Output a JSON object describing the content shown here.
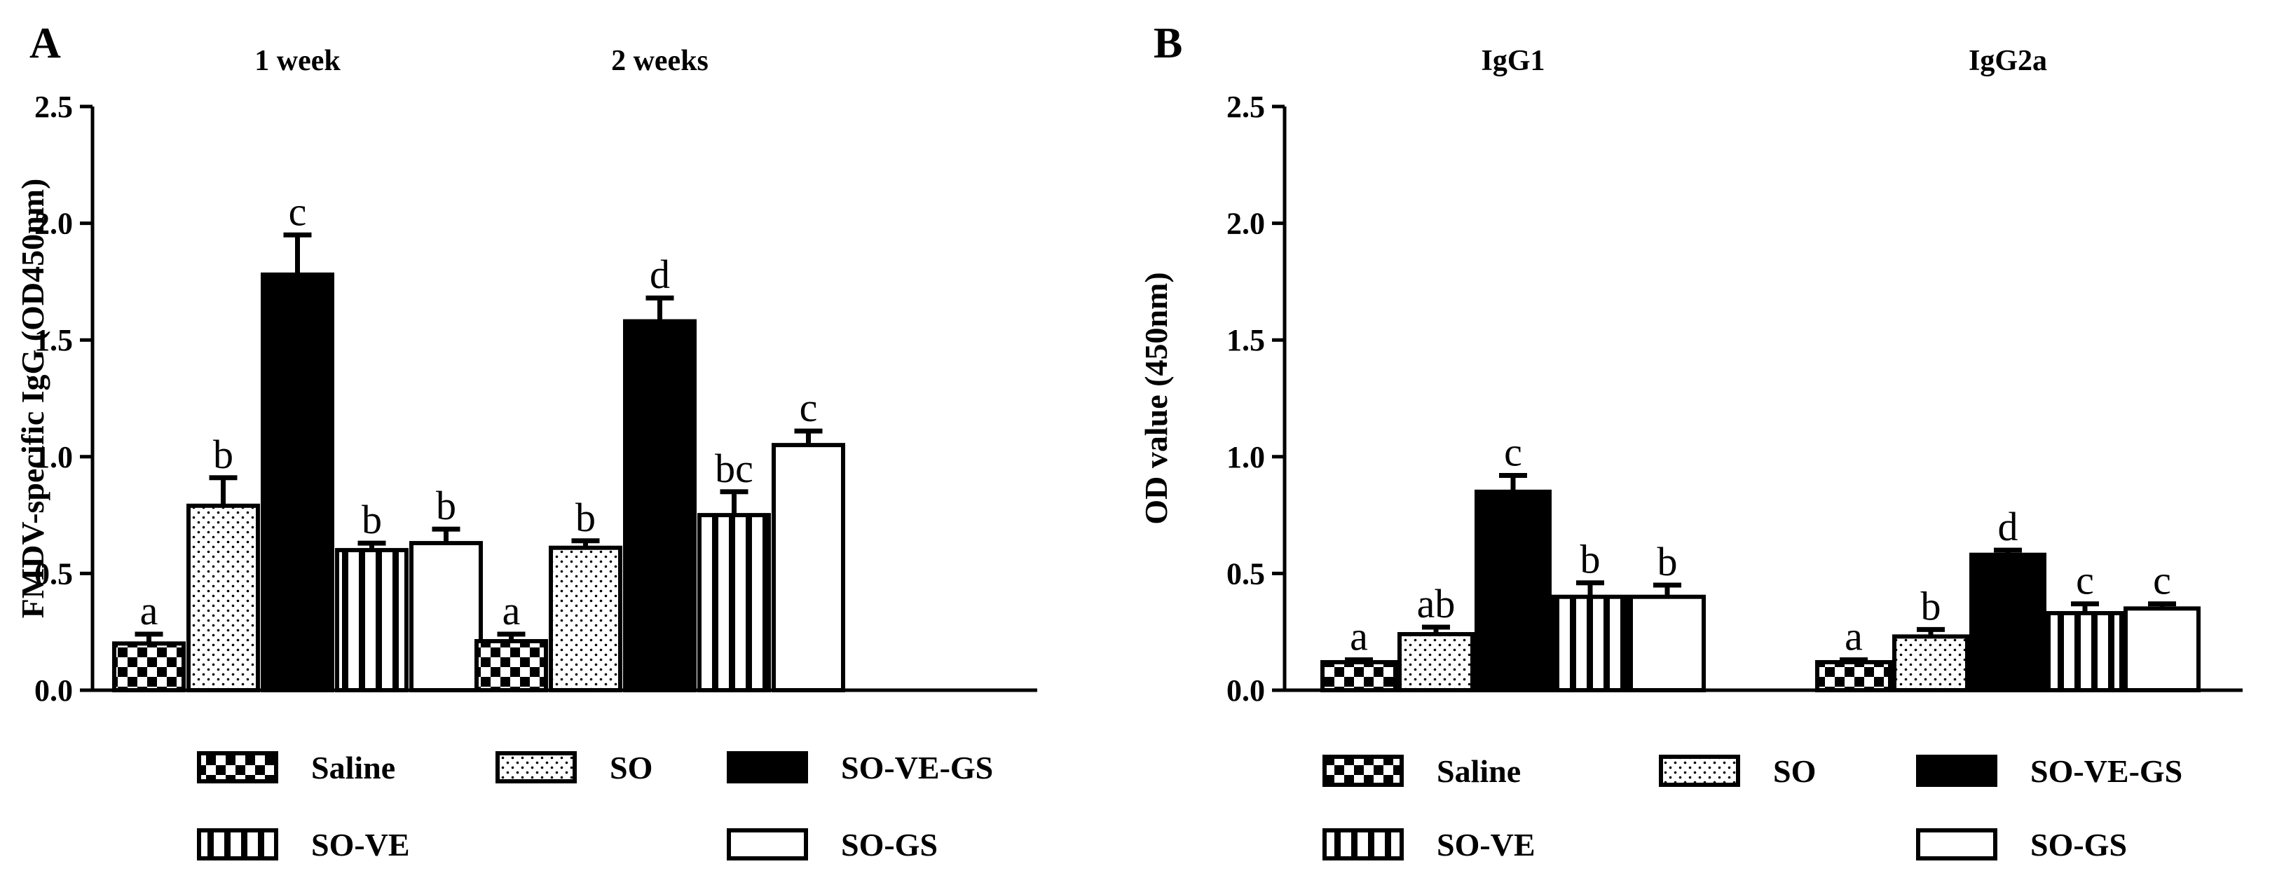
{
  "figure": {
    "panels": [
      "A",
      "B"
    ]
  },
  "legend_items": [
    "Saline",
    "SO",
    "SO-VE-GS",
    "SO-VE",
    "SO-GS"
  ],
  "colors": {
    "ink": "#000000",
    "background": "#ffffff"
  },
  "chart_data": [
    {
      "type": "bar",
      "panel": "A",
      "title": "",
      "xlabel": "",
      "ylabel": "FMDV-specific IgG (OD450nm)",
      "ylim": [
        0,
        2.5
      ],
      "yticks": [
        "0.0",
        "0.5",
        "1.0",
        "1.5",
        "2.0",
        "2.5"
      ],
      "categories": [
        "1 week",
        "2 weeks"
      ],
      "series": [
        {
          "name": "Saline",
          "pattern": "checker",
          "values": [
            0.2,
            0.21
          ],
          "errors": [
            0.04,
            0.03
          ],
          "labels": [
            "a",
            "a"
          ]
        },
        {
          "name": "SO",
          "pattern": "dots",
          "values": [
            0.79,
            0.61
          ],
          "errors": [
            0.12,
            0.03
          ],
          "labels": [
            "b",
            "b"
          ]
        },
        {
          "name": "SO-VE-GS",
          "pattern": "solid",
          "values": [
            1.78,
            1.58
          ],
          "errors": [
            0.17,
            0.1
          ],
          "labels": [
            "c",
            "d"
          ]
        },
        {
          "name": "SO-VE",
          "pattern": "stripes",
          "values": [
            0.6,
            0.75
          ],
          "errors": [
            0.03,
            0.1
          ],
          "labels": [
            "b",
            "bc"
          ]
        },
        {
          "name": "SO-GS",
          "pattern": "white",
          "values": [
            0.63,
            1.05
          ],
          "errors": [
            0.06,
            0.06
          ],
          "labels": [
            "b",
            "c"
          ]
        }
      ]
    },
    {
      "type": "bar",
      "panel": "B",
      "title": "",
      "xlabel": "",
      "ylabel": "OD value (450nm)",
      "ylim": [
        0,
        2.5
      ],
      "yticks": [
        "0.0",
        "0.5",
        "1.0",
        "1.5",
        "2.0",
        "2.5"
      ],
      "categories": [
        "IgG1",
        "IgG2a"
      ],
      "series": [
        {
          "name": "Saline",
          "pattern": "checker",
          "values": [
            0.12,
            0.12
          ],
          "errors": [
            0.01,
            0.01
          ],
          "labels": [
            "a",
            "a"
          ]
        },
        {
          "name": "SO",
          "pattern": "dots",
          "values": [
            0.24,
            0.23
          ],
          "errors": [
            0.03,
            0.03
          ],
          "labels": [
            "ab",
            "b"
          ]
        },
        {
          "name": "SO-VE-GS",
          "pattern": "solid",
          "values": [
            0.85,
            0.58
          ],
          "errors": [
            0.07,
            0.02
          ],
          "labels": [
            "c",
            "d"
          ]
        },
        {
          "name": "SO-VE",
          "pattern": "stripes",
          "values": [
            0.4,
            0.33
          ],
          "errors": [
            0.06,
            0.04
          ],
          "labels": [
            "b",
            "c"
          ]
        },
        {
          "name": "SO-GS",
          "pattern": "white",
          "values": [
            0.4,
            0.35
          ],
          "errors": [
            0.05,
            0.02
          ],
          "labels": [
            "b",
            "c"
          ]
        }
      ]
    }
  ]
}
